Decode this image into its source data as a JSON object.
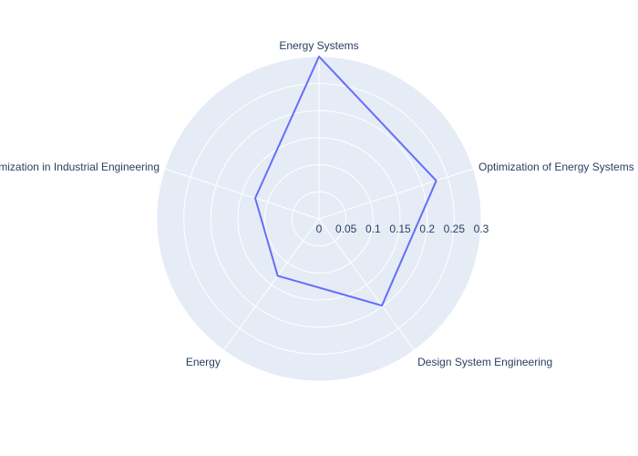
{
  "chart_data": {
    "type": "radar",
    "categories": [
      "Energy Systems",
      "Optimization of Energy Systems",
      "Design System Engineering",
      "Energy",
      "Optimization in Industrial Engineering"
    ],
    "values": [
      0.3,
      0.228,
      0.198,
      0.13,
      0.124
    ],
    "radial_ticks": [
      "0",
      "0.05",
      "0.1",
      "0.15",
      "0.2",
      "0.25",
      "0.3"
    ],
    "rlim": [
      0,
      0.3
    ],
    "grid": true,
    "colors": {
      "plot_bg": "#e5ecf6",
      "grid": "#ffffff",
      "line": "#636efa",
      "text": "#2a3f5f"
    }
  }
}
